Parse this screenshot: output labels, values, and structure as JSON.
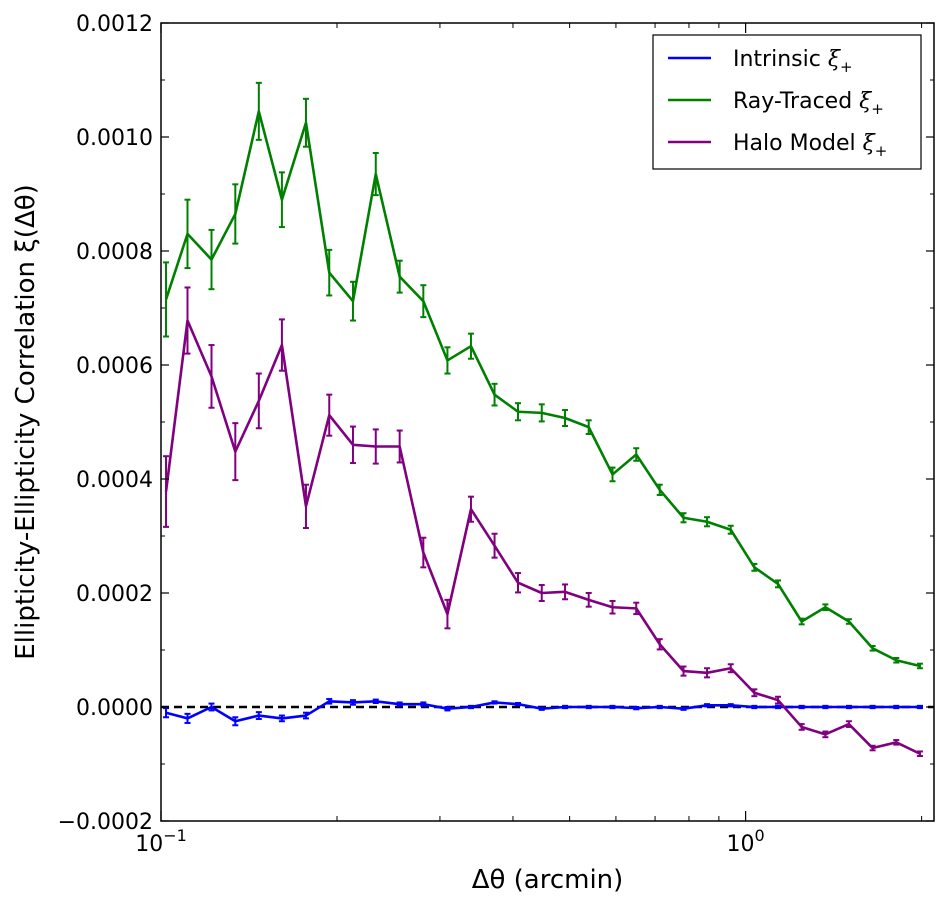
{
  "chart_data": {
    "type": "line",
    "title": "",
    "xlabel": "Δθ (arcmin)",
    "ylabel": "Ellipticity-Ellipticity Correlation ξ(Δθ)",
    "x_scale": "log",
    "xlim": [
      0.1,
      2.1
    ],
    "ylim": [
      -0.0002,
      0.0012
    ],
    "x_ticks": [
      {
        "value": 0.1,
        "label": "10",
        "exp": "−1"
      },
      {
        "value": 1.0,
        "label": "10",
        "exp": "0"
      }
    ],
    "y_ticks": [
      {
        "value": -0.0002,
        "label": "−0.0002"
      },
      {
        "value": 0.0,
        "label": "0.0000"
      },
      {
        "value": 0.0002,
        "label": "0.0002"
      },
      {
        "value": 0.0004,
        "label": "0.0004"
      },
      {
        "value": 0.0006,
        "label": "0.0006"
      },
      {
        "value": 0.0008,
        "label": "0.0008"
      },
      {
        "value": 0.001,
        "label": "0.0010"
      },
      {
        "value": 0.0012,
        "label": "0.0012"
      }
    ],
    "reference_line": {
      "y": 0.0,
      "style": "dashed",
      "color": "#000000"
    },
    "legend_position": "top-right",
    "x": [
      0.102,
      0.111,
      0.122,
      0.134,
      0.147,
      0.161,
      0.177,
      0.194,
      0.213,
      0.233,
      0.256,
      0.281,
      0.309,
      0.339,
      0.372,
      0.408,
      0.448,
      0.491,
      0.539,
      0.592,
      0.65,
      0.713,
      0.783,
      0.859,
      0.943,
      1.035,
      1.136,
      1.247,
      1.369,
      1.502,
      1.649,
      1.81,
      1.987
    ],
    "series": [
      {
        "name": "Intrinsic",
        "color": "#0000ff",
        "values": [
          -1e-05,
          -2e-05,
          0.0,
          -2.5e-05,
          -1.5e-05,
          -2e-05,
          -1.5e-05,
          1e-05,
          8e-06,
          1e-05,
          5e-06,
          5e-06,
          -3e-06,
          0.0,
          8e-06,
          5e-06,
          -3e-06,
          0.0,
          0.0,
          0.0,
          -2e-06,
          0.0,
          -3e-06,
          3e-06,
          3e-06,
          0.0,
          0.0,
          0.0,
          0.0,
          0.0,
          0.0,
          0.0,
          0.0
        ],
        "errors": [
          8e-06,
          8e-06,
          6e-06,
          7e-06,
          6e-06,
          5e-06,
          5e-06,
          4e-06,
          4e-06,
          3e-06,
          3e-06,
          3e-06,
          3e-06,
          2e-06,
          2e-06,
          2e-06,
          2e-06,
          2e-06,
          2e-06,
          2e-06,
          2e-06,
          2e-06,
          2e-06,
          2e-06,
          2e-06,
          2e-06,
          2e-06,
          2e-06,
          2e-06,
          2e-06,
          2e-06,
          2e-06,
          2e-06
        ]
      },
      {
        "name": "Ray-Traced",
        "color": "#008000",
        "values": [
          0.000715,
          0.00083,
          0.000785,
          0.000865,
          0.001045,
          0.00089,
          0.001025,
          0.000762,
          0.000712,
          0.000935,
          0.000755,
          0.000712,
          0.000608,
          0.000633,
          0.000548,
          0.000518,
          0.000516,
          0.000507,
          0.000491,
          0.000408,
          0.000443,
          0.000381,
          0.000332,
          0.000325,
          0.000311,
          0.000245,
          0.000216,
          0.00015,
          0.000175,
          0.00015,
          0.000103,
          8.2e-05,
          7.2e-05
        ],
        "errors": [
          6.5e-05,
          6e-05,
          5.2e-05,
          5.2e-05,
          5e-05,
          4.8e-05,
          4.2e-05,
          4e-05,
          3.4e-05,
          3.7e-05,
          2.8e-05,
          2.8e-05,
          2.3e-05,
          2.2e-05,
          1.9e-05,
          1.5e-05,
          1.5e-05,
          1.4e-05,
          1.2e-05,
          1.2e-05,
          1.1e-05,
          9e-06,
          8e-06,
          8e-06,
          7e-06,
          6e-06,
          6e-06,
          5e-06,
          5e-06,
          4e-06,
          4e-06,
          4e-06,
          4e-06
        ]
      },
      {
        "name": "Halo Model",
        "color": "#800080",
        "values": [
          0.000378,
          0.000678,
          0.00058,
          0.000448,
          0.000537,
          0.000635,
          0.000352,
          0.000512,
          0.00046,
          0.000457,
          0.000457,
          0.000271,
          0.000163,
          0.000347,
          0.000283,
          0.000218,
          0.0002,
          0.000202,
          0.000188,
          0.000175,
          0.000173,
          0.00011,
          6.3e-05,
          6e-05,
          6.8e-05,
          2.5e-05,
          1.2e-05,
          -3.5e-05,
          -4.8e-05,
          -3e-05,
          -7.2e-05,
          -6.2e-05,
          -8.2e-05
        ],
        "errors": [
          6.2e-05,
          5.8e-05,
          5.5e-05,
          5e-05,
          4.8e-05,
          4.5e-05,
          3.8e-05,
          3.6e-05,
          3.2e-05,
          3e-05,
          2.8e-05,
          2.6e-05,
          2.5e-05,
          2.2e-05,
          2.1e-05,
          1.7e-05,
          1.4e-05,
          1.3e-05,
          1.2e-05,
          1.1e-05,
          1e-05,
          9e-06,
          8e-06,
          8e-06,
          7e-06,
          6e-06,
          6e-06,
          5e-06,
          5e-06,
          5e-06,
          4e-06,
          4e-06,
          4e-06
        ]
      }
    ]
  }
}
